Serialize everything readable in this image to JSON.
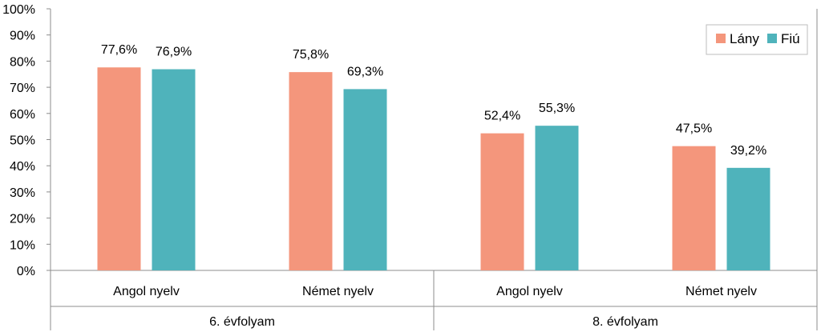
{
  "chart_data": {
    "type": "bar",
    "groups": [
      {
        "label": "6. évfolyam",
        "categories": [
          "Angol nyelv",
          "Német nyelv"
        ]
      },
      {
        "label": "8. évfolyam",
        "categories": [
          "Angol nyelv",
          "Német nyelv"
        ]
      }
    ],
    "categories": [
      "Angol nyelv",
      "Német nyelv",
      "Angol nyelv",
      "Német nyelv"
    ],
    "series": [
      {
        "name": "Lány",
        "color": "#f4967c",
        "values": [
          77.6,
          75.8,
          52.4,
          47.5
        ],
        "labels": [
          "77,6%",
          "75,8%",
          "52,4%",
          "47,5%"
        ]
      },
      {
        "name": "Fiú",
        "color": "#4fb3bb",
        "values": [
          76.9,
          69.3,
          55.3,
          39.2
        ],
        "labels": [
          "76,9%",
          "69,3%",
          "55,3%",
          "39,2%"
        ]
      }
    ],
    "y_ticks": [
      "0%",
      "10%",
      "20%",
      "30%",
      "40%",
      "50%",
      "60%",
      "70%",
      "80%",
      "90%",
      "100%"
    ],
    "ylim": [
      0,
      100
    ],
    "grid": false,
    "legend_position": "top-right"
  }
}
